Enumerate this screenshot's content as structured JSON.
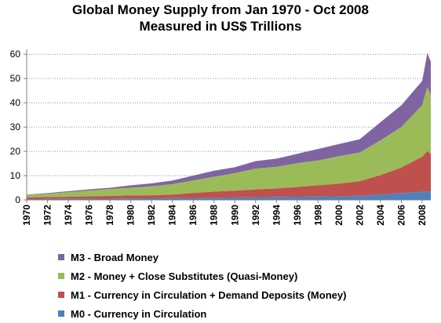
{
  "chart_data": {
    "type": "area",
    "stacked": true,
    "title_lines": [
      "Global Money Supply from Jan 1970 - Oct 2008",
      "Measured in US$ Trillions"
    ],
    "xlabel": "",
    "ylabel": "",
    "ylim": [
      0,
      62
    ],
    "yticks": [
      "0",
      "10",
      "20",
      "30",
      "40",
      "50",
      "60"
    ],
    "xlim": [
      1970,
      2008.83
    ],
    "xticks": [
      "1970",
      "1972",
      "1974",
      "1976",
      "1978",
      "1980",
      "1982",
      "1984",
      "1986",
      "1988",
      "1990",
      "1992",
      "1994",
      "1996",
      "1998",
      "2000",
      "2002",
      "2004",
      "2006",
      "2008"
    ],
    "grid": "horizontal dotted",
    "legend_placement": "bottom",
    "x": [
      1970,
      1972,
      1974,
      1976,
      1978,
      1980,
      1982,
      1984,
      1986,
      1988,
      1990,
      1992,
      1994,
      1996,
      1998,
      2000,
      2002,
      2004,
      2006,
      2008,
      2008.5,
      2008.83
    ],
    "series": [
      {
        "name": "M0 - Currency in Circulation",
        "color": "#4f81bd",
        "values": [
          0.3,
          0.35,
          0.4,
          0.45,
          0.5,
          0.6,
          0.65,
          0.7,
          0.8,
          0.9,
          1.0,
          1.1,
          1.2,
          1.3,
          1.4,
          1.5,
          1.7,
          2.2,
          2.8,
          3.3,
          3.6,
          3.5
        ]
      },
      {
        "name": "M1 - Currency in Circulation + Demand Deposits (Money)",
        "color": "#c0504d",
        "values": [
          0.7,
          0.8,
          0.9,
          1.0,
          1.1,
          1.2,
          1.25,
          1.5,
          2.0,
          2.5,
          2.8,
          3.2,
          3.5,
          4.0,
          4.6,
          5.2,
          6.0,
          8.0,
          10.5,
          14.5,
          16.5,
          15.5
        ]
      },
      {
        "name": "M2 - Money + Close Substitutes (Quasi-Money)",
        "color": "#9bbb59",
        "values": [
          1.0,
          1.4,
          1.9,
          2.4,
          2.9,
          3.2,
          3.7,
          4.3,
          5.2,
          6.1,
          7.2,
          8.6,
          8.9,
          9.8,
          10.2,
          11.3,
          11.8,
          14.3,
          16.7,
          21.2,
          26.4,
          24.0
        ]
      },
      {
        "name": "M3 - Broad Money",
        "color": "#8064a2",
        "values": [
          0.2,
          0.3,
          0.4,
          0.5,
          0.5,
          1.0,
          1.2,
          1.5,
          2.0,
          2.5,
          2.5,
          3.1,
          3.4,
          3.9,
          4.8,
          5.0,
          5.5,
          7.5,
          9.0,
          10.0,
          14.0,
          14.0
        ]
      }
    ]
  }
}
